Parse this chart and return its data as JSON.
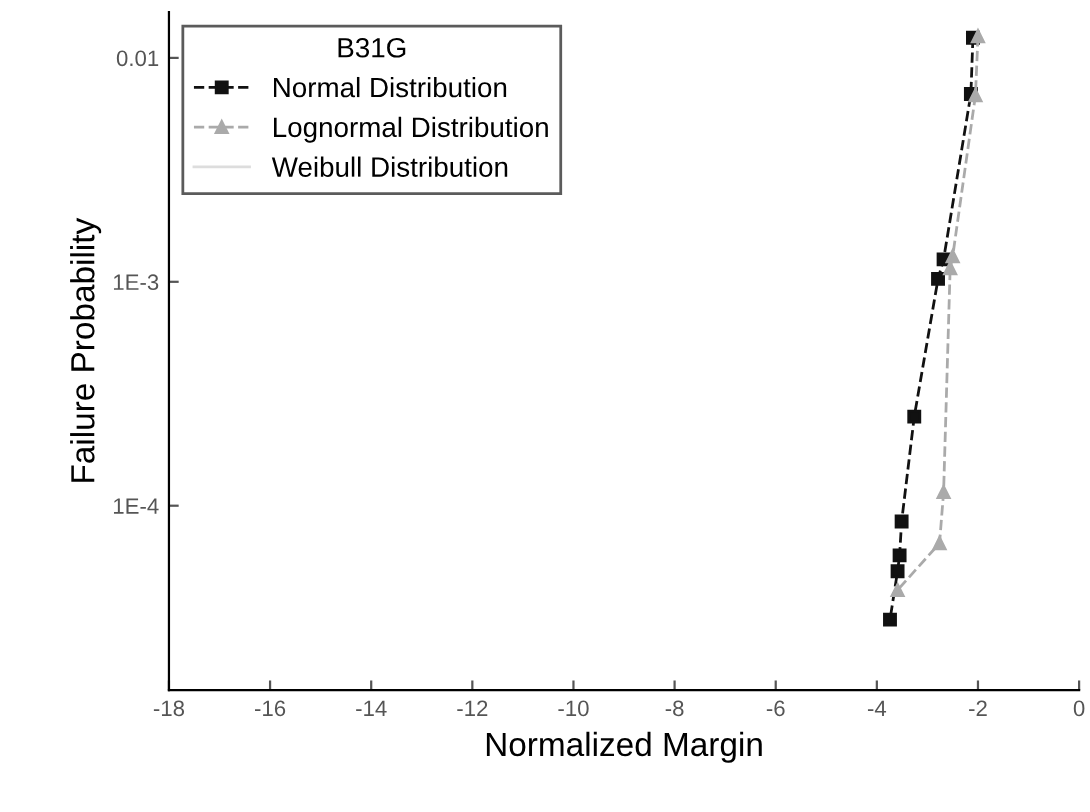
{
  "chart_data": {
    "type": "line",
    "xlabel": "Normalized Margin",
    "ylabel": "Failure Probability",
    "legend_title": "B31G",
    "legend": "top left",
    "log": "y",
    "xlim": [
      -18,
      0
    ],
    "xticks": [
      -18,
      -16,
      -14,
      -12,
      -10,
      -8,
      -6,
      -4,
      -2,
      0
    ],
    "ylim": [
      1.5e-05,
      0.016
    ],
    "yticks": [
      {
        "value": 0.01,
        "label": "0.01"
      },
      {
        "value": 0.001,
        "label": "1E-3"
      },
      {
        "value": 0.0001,
        "label": "1E-4"
      }
    ],
    "grid": false,
    "series": [
      {
        "name": "Normal Distribution",
        "color": "#111111",
        "marker": "square",
        "line_style": "dashed",
        "x": [
          -2.1,
          -2.14,
          -2.68,
          -2.79,
          -3.26,
          -3.51,
          -3.55,
          -3.59,
          -3.74
        ],
        "values": [
          0.0123,
          0.0069,
          0.00126,
          0.00103,
          0.00025,
          8.5e-05,
          6e-05,
          5.1e-05,
          3.1e-05
        ]
      },
      {
        "name": "Lognormal Distribution",
        "color": "#aaaaaa",
        "marker": "triangle",
        "line_style": "dashed",
        "x": [
          -2.0,
          -2.05,
          -2.5,
          -2.55,
          -2.68,
          -2.76,
          -3.59
        ],
        "values": [
          0.0125,
          0.0068,
          0.0013,
          0.00115,
          0.000115,
          6.8e-05,
          4.2e-05
        ]
      },
      {
        "name": "Weibull Distribution",
        "color": "#dddddd",
        "marker": "none",
        "line_style": "solid"
      }
    ]
  }
}
